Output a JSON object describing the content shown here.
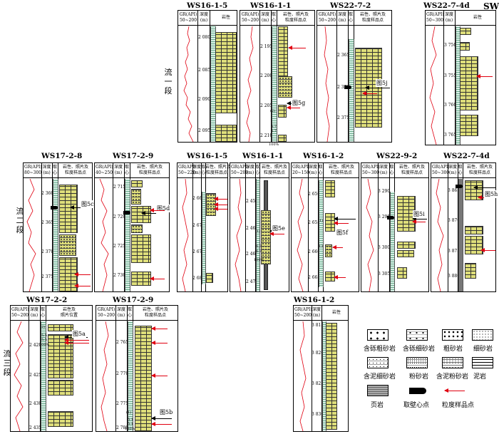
{
  "sections": {
    "s1": "流一段",
    "s2": "流二段",
    "s3": "流三段",
    "sw": "SW"
  },
  "headers": {
    "gr_50_200": "GR(API)",
    "gr_range_50_200": "50~200",
    "gr_range_50_300": "50~300",
    "gr_range_80_300": "80~300",
    "gr_range_40_250": "40~250",
    "gr_range_50_220": "50~220",
    "gr_range_20_150": "20~150",
    "depth": "深度",
    "depth_unit": "(m)",
    "core": "取",
    "core2": "心",
    "litho": "岩性",
    "litho_sample_1": "岩性、照片及",
    "litho_sample_2": "粒度样品点",
    "litho_photo_1": "岩性及",
    "litho_photo_2": "照片位置"
  },
  "wells": {
    "w1": {
      "title": "WS16-1-5",
      "depths": [
        "2 080",
        "2 085",
        "2 090",
        "2 095"
      ]
    },
    "w2": {
      "title": "WS16-1-1",
      "depths": [
        "2 195",
        "2 200",
        "2 205",
        "2 210"
      ]
    },
    "w3": {
      "title": "WS22-7-2",
      "depths": [
        "2 365",
        "2 370",
        "2 375"
      ]
    },
    "w4": {
      "title": "WS22-7-4d",
      "depths": [
        "3 750",
        "3 755",
        "3 760",
        "3 765"
      ]
    },
    "w5": {
      "title": "WS17-2-8",
      "depths": [
        "2 360",
        "2 365",
        "2 370",
        "2 375"
      ]
    },
    "w6": {
      "title": "WS17-2-9",
      "depths": [
        "2 715",
        "2 720",
        "2 725",
        "2 730"
      ]
    },
    "w7": {
      "title": "WS16-1-5",
      "depths": [
        "2 665",
        "2 670",
        "2 675",
        "2 680"
      ]
    },
    "w8": {
      "title": "WS16-1-1",
      "depths": [
        "2 455",
        "2 460",
        "2 465",
        "2 470"
      ]
    },
    "w9": {
      "title": "WS16-1-2",
      "depths": [
        "2 650",
        "2 655",
        "2 660",
        "2 665"
      ]
    },
    "w10": {
      "title": "WS22-9-2",
      "depths": [
        "3 290",
        "3 295",
        "3 300",
        "3 305"
      ]
    },
    "w11": {
      "title": "WS22-7-4d",
      "depths": [
        "3 865",
        "3 870",
        "3 875",
        "3 880"
      ]
    },
    "w12": {
      "title": "WS17-2-2",
      "depths": [
        "2 420",
        "2 425",
        "2 430",
        "2 435"
      ]
    },
    "w13": {
      "title": "WS17-2-9",
      "depths": [
        "2 765",
        "2 770",
        "2 775",
        "2 780"
      ]
    },
    "w14": {
      "title": "WS16-1-2",
      "depths": [
        "3 815",
        "3 820",
        "3 825",
        "3 830"
      ]
    }
  },
  "figure_labels": {
    "f5g": "图5g",
    "f5j": "图5j",
    "f5c": "图5c",
    "f5d": "图5d",
    "f5i": "图5i",
    "f5h": "图5h",
    "f5e": "图5e",
    "f5f": "图5f",
    "f5a": "图5a",
    "f5b": "图5b"
  },
  "core_marks": {
    "m1": "(2)",
    "m2": "6.7",
    "m3": "5.7",
    "m4": "100%",
    "m5": "(1)",
    "m6": "6.3",
    "m7": "6.7",
    "m8": "(1)",
    "m9": "13",
    "m10": "5.5",
    "m11": "5.5",
    "m12": "100%",
    "m13": "(1)",
    "m14": "5.1",
    "m15": "5.1",
    "m16": "100%",
    "m17": "(2)",
    "m18": "100%",
    "m19": "100%"
  },
  "legend": {
    "conglo_coarse": "含砾粗砂岩",
    "conglo_fine": "含砾细砂岩",
    "coarse": "粗砂岩",
    "fine": "细砂岩",
    "mud_fine": "含泥细砂岩",
    "silt": "粉砂岩",
    "mud_silt": "含泥粉砂岩",
    "mudstone": "泥岩",
    "shale": "页岩",
    "core_pt": "取壁心点",
    "sample_pt": "粒度样品点"
  },
  "colors": {
    "rock": "#dede7a",
    "gr_curve": "#e00010",
    "core": "#d8eee6"
  }
}
